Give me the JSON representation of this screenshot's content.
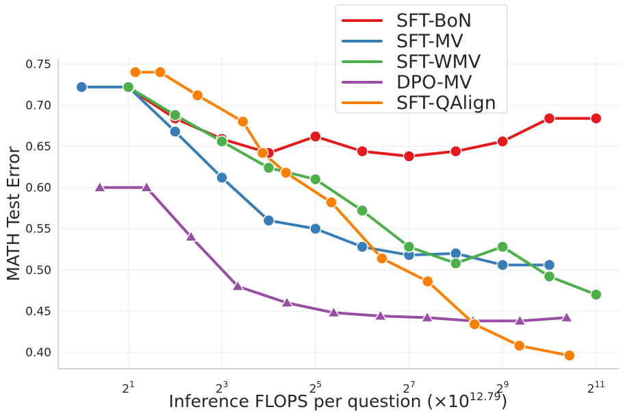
{
  "chart_data": {
    "type": "line",
    "xlabel_prefix": "Inference FLOPS per question (×10",
    "xlabel_exp": "12.79",
    "xlabel_suffix": ")",
    "ylabel": "MATH Test Error",
    "x_scale": "log2",
    "xlim_log2": [
      -0.5,
      11.5
    ],
    "ylim": [
      0.38,
      0.757
    ],
    "x_tick_exponents": [
      "1",
      "3",
      "5",
      "7",
      "9",
      "11"
    ],
    "y_ticks": [
      "0.40",
      "0.45",
      "0.50",
      "0.55",
      "0.60",
      "0.65",
      "0.70",
      "0.75"
    ],
    "legend_position": "top-center",
    "grid": true,
    "series": [
      {
        "name": "SFT-BoN",
        "color": "#e41a1c",
        "marker": "circle",
        "x_log2": [
          1,
          2,
          3,
          4,
          5,
          6,
          7,
          8,
          9,
          10,
          11
        ],
        "values": [
          0.721,
          0.684,
          0.659,
          0.642,
          0.662,
          0.644,
          0.638,
          0.644,
          0.656,
          0.684,
          0.684
        ]
      },
      {
        "name": "SFT-MV",
        "color": "#377eb8",
        "marker": "circle",
        "x_log2": [
          0,
          1,
          2,
          3,
          4,
          5,
          6,
          7,
          8,
          9,
          10
        ],
        "values": [
          0.722,
          0.722,
          0.668,
          0.612,
          0.56,
          0.55,
          0.528,
          0.518,
          0.52,
          0.506,
          0.506
        ]
      },
      {
        "name": "SFT-WMV",
        "color": "#4daf4a",
        "marker": "circle",
        "x_log2": [
          1,
          2,
          3,
          4,
          5,
          6,
          7,
          8,
          9,
          10,
          11
        ],
        "values": [
          0.722,
          0.688,
          0.656,
          0.624,
          0.61,
          0.572,
          0.528,
          0.508,
          0.528,
          0.492,
          0.47
        ]
      },
      {
        "name": "DPO-MV",
        "color": "#984ea3",
        "marker": "triangle",
        "x_log2": [
          0.39,
          1.39,
          2.34,
          3.34,
          4.39,
          5.39,
          6.39,
          7.39,
          8.37,
          9.37,
          10.37
        ],
        "values": [
          0.6,
          0.6,
          0.54,
          0.48,
          0.46,
          0.448,
          0.444,
          0.442,
          0.438,
          0.438,
          0.442
        ]
      },
      {
        "name": "SFT-QAlign",
        "color": "#ff7f00",
        "marker": "circle",
        "x_log2": [
          1.15,
          1.68,
          2.48,
          3.45,
          3.87,
          4.37,
          5.34,
          6.42,
          7.4,
          8.4,
          9.36,
          10.43
        ],
        "values": [
          0.74,
          0.74,
          0.712,
          0.68,
          0.642,
          0.618,
          0.582,
          0.514,
          0.486,
          0.434,
          0.408,
          0.396
        ]
      }
    ]
  }
}
